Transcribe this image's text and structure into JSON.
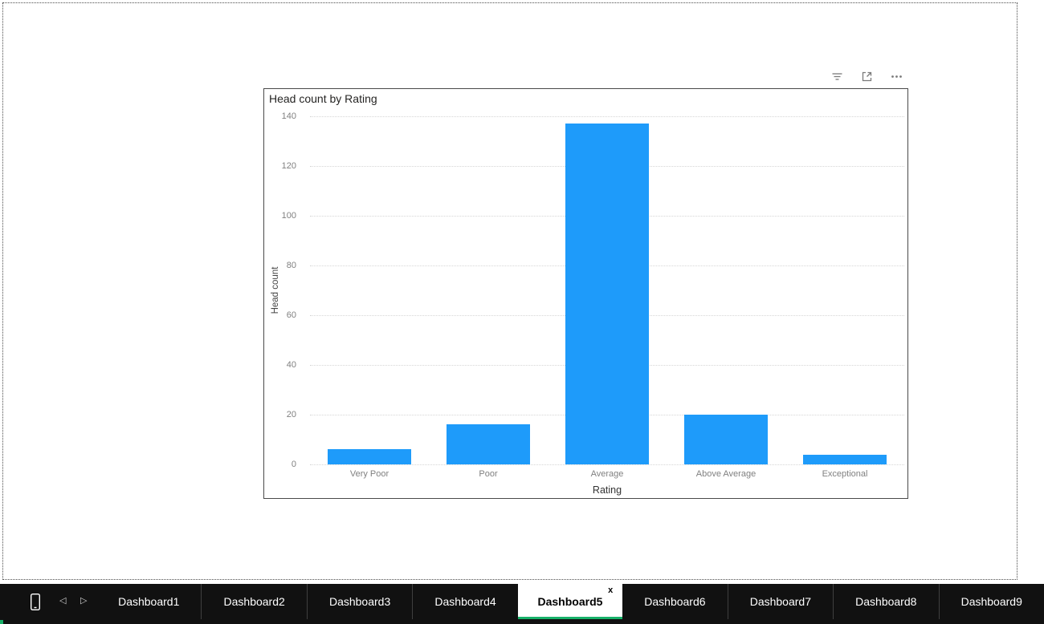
{
  "visual_toolbar": {
    "icons": [
      {
        "name": "filter-icon"
      },
      {
        "name": "focus-mode-icon"
      },
      {
        "name": "more-options-icon"
      }
    ]
  },
  "chart_data": {
    "type": "bar",
    "title": "Head count by Rating",
    "categories": [
      "Very Poor",
      "Poor",
      "Average",
      "Above Average",
      "Exceptional"
    ],
    "values": [
      6,
      16,
      137,
      20,
      4
    ],
    "xlabel": "Rating",
    "ylabel": "Head count",
    "ylim": [
      0,
      140
    ],
    "ytick_step": 20,
    "bar_color": "#1E9BFA",
    "grid": true,
    "legend_position": "none"
  },
  "tab_bar": {
    "tabs": [
      {
        "label": "Dashboard1",
        "active": false
      },
      {
        "label": "Dashboard2",
        "active": false
      },
      {
        "label": "Dashboard3",
        "active": false
      },
      {
        "label": "Dashboard4",
        "active": false
      },
      {
        "label": "Dashboard5",
        "active": true,
        "closable": true
      },
      {
        "label": "Dashboard6",
        "active": false
      },
      {
        "label": "Dashboard7",
        "active": false
      },
      {
        "label": "Dashboard8",
        "active": false
      },
      {
        "label": "Dashboard9",
        "active": false
      }
    ],
    "close_label": "x",
    "active_underline_color": "#17B169",
    "accent_color": "#17B169",
    "background": "#111111"
  }
}
